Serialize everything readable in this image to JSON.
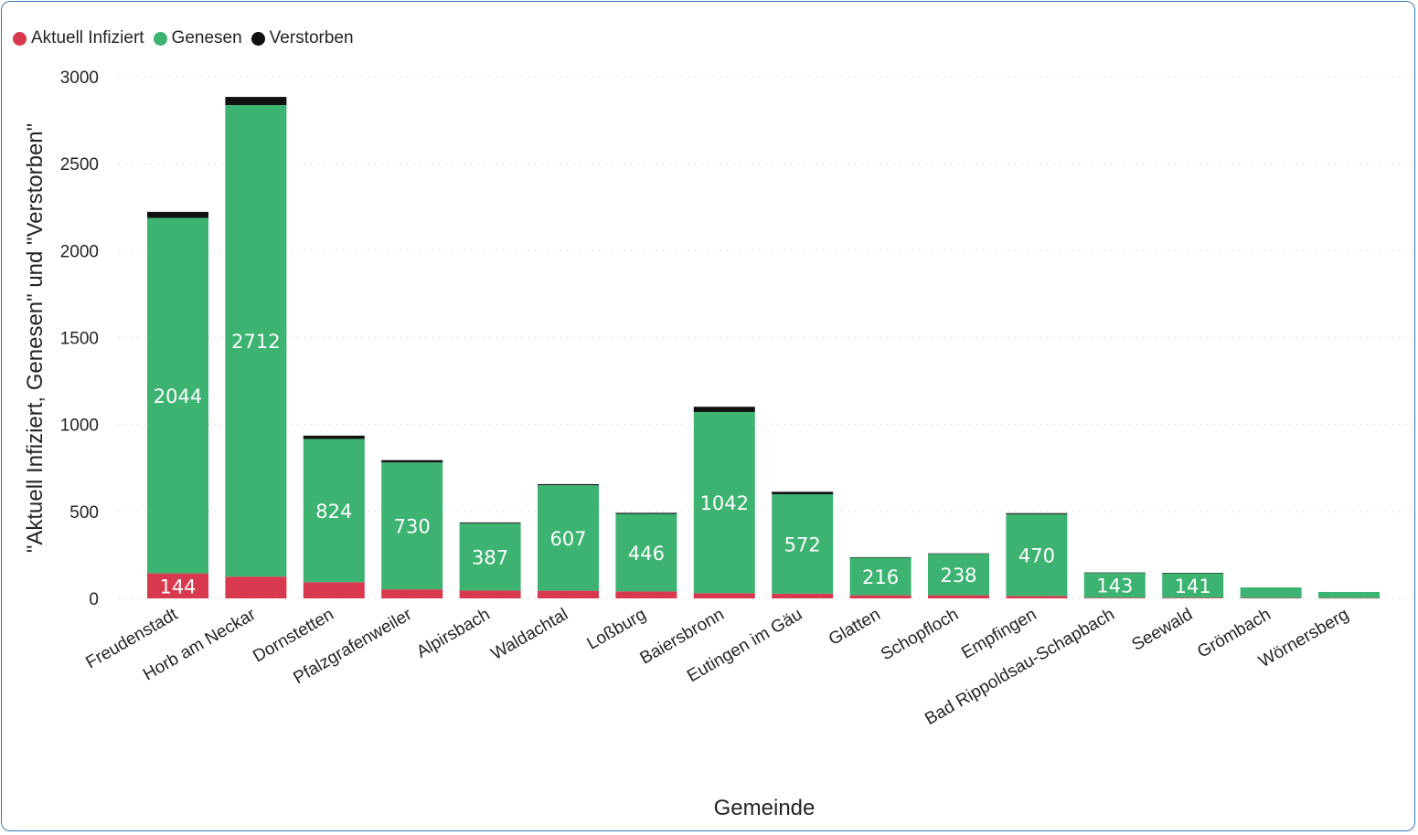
{
  "chart_data": {
    "type": "bar",
    "stacked": true,
    "xlabel": "Gemeinde",
    "ylabel": "\"Aktuell Infiziert, Genesen\" und \"Verstorben\"",
    "ylim": [
      0,
      3000
    ],
    "yticks": [
      0,
      500,
      1000,
      1500,
      2000,
      2500,
      3000
    ],
    "grid": true,
    "legend_position": "top-left",
    "categories": [
      "Freudenstadt",
      "Horb am Neckar",
      "Dornstetten",
      "Pfalzgrafenweiler",
      "Alpirsbach",
      "Waldachtal",
      "Loßburg",
      "Baiersbronn",
      "Eutingen im Gäu",
      "Glatten",
      "Schopfloch",
      "Empfingen",
      "Bad Rippoldsau-Schapbach",
      "Seewald",
      "Grömbach",
      "Wörnersberg"
    ],
    "series": [
      {
        "name": "Aktuell Infiziert",
        "color": "#d9394e",
        "values": [
          144,
          125,
          93,
          52,
          45,
          44,
          40,
          30,
          27,
          18,
          18,
          14,
          4,
          4,
          3,
          2
        ],
        "labels": [
          "144",
          "",
          "",
          "",
          "",
          "",
          "",
          "",
          "",
          "",
          "",
          "",
          "",
          "",
          "",
          ""
        ]
      },
      {
        "name": "Genesen",
        "color": "#3cb371",
        "values": [
          2044,
          2712,
          824,
          730,
          387,
          607,
          446,
          1042,
          572,
          216,
          238,
          470,
          143,
          141,
          60,
          35
        ],
        "labels": [
          "2044",
          "2712",
          "824",
          "730",
          "387",
          "607",
          "446",
          "1042",
          "572",
          "216",
          "238",
          "470",
          "143",
          "141",
          "",
          ""
        ]
      },
      {
        "name": "Verstorben",
        "color": "#111111",
        "values": [
          35,
          47,
          19,
          13,
          5,
          6,
          6,
          30,
          14,
          3,
          3,
          6,
          2,
          2,
          0,
          0
        ],
        "labels": [
          "",
          "",
          "",
          "",
          "",
          "",
          "",
          "",
          "",
          "",
          "",
          "",
          "",
          "",
          "",
          ""
        ]
      }
    ]
  }
}
